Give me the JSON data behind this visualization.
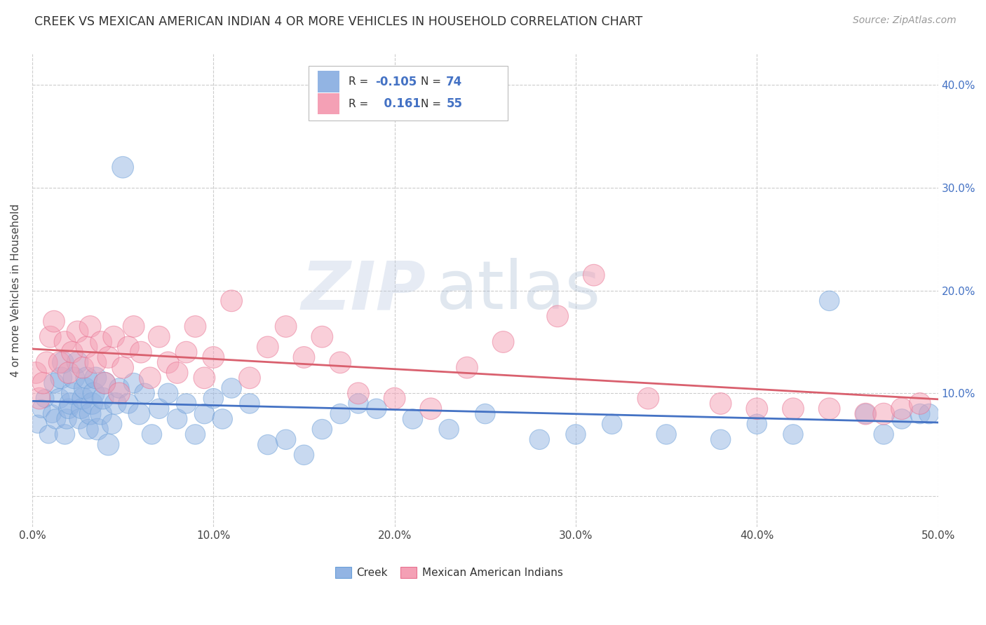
{
  "title": "CREEK VS MEXICAN AMERICAN INDIAN 4 OR MORE VEHICLES IN HOUSEHOLD CORRELATION CHART",
  "source": "Source: ZipAtlas.com",
  "ylabel": "4 or more Vehicles in Household",
  "xlim": [
    0.0,
    0.5
  ],
  "ylim": [
    -0.03,
    0.43
  ],
  "xtick_vals": [
    0.0,
    0.1,
    0.2,
    0.3,
    0.4,
    0.5
  ],
  "xtick_labels": [
    "0.0%",
    "10.0%",
    "20.0%",
    "30.0%",
    "40.0%",
    "50.0%"
  ],
  "ytick_vals": [
    0.0,
    0.1,
    0.2,
    0.3,
    0.4
  ],
  "creek_color": "#92b4e3",
  "creek_edge_color": "#6a9fd8",
  "mexican_color": "#f4a0b5",
  "mexican_edge_color": "#e87090",
  "creek_line_color": "#4472c4",
  "mexican_line_color": "#d9606e",
  "creek_R": -0.105,
  "creek_N": 74,
  "mexican_R": 0.161,
  "mexican_N": 55,
  "legend_labels": [
    "Creek",
    "Mexican American Indians"
  ],
  "background_color": "#ffffff",
  "grid_color": "#cccccc",
  "right_tick_color": "#4472c4",
  "creek_x": [
    0.003,
    0.005,
    0.007,
    0.009,
    0.011,
    0.012,
    0.013,
    0.015,
    0.016,
    0.017,
    0.018,
    0.019,
    0.02,
    0.021,
    0.022,
    0.023,
    0.025,
    0.026,
    0.027,
    0.028,
    0.029,
    0.03,
    0.031,
    0.032,
    0.033,
    0.034,
    0.035,
    0.036,
    0.038,
    0.039,
    0.04,
    0.042,
    0.044,
    0.046,
    0.048,
    0.05,
    0.053,
    0.056,
    0.059,
    0.062,
    0.066,
    0.07,
    0.075,
    0.08,
    0.085,
    0.09,
    0.095,
    0.1,
    0.105,
    0.11,
    0.12,
    0.13,
    0.14,
    0.15,
    0.16,
    0.17,
    0.18,
    0.19,
    0.21,
    0.23,
    0.25,
    0.28,
    0.3,
    0.32,
    0.35,
    0.38,
    0.4,
    0.42,
    0.44,
    0.46,
    0.47,
    0.48,
    0.49,
    0.495
  ],
  "creek_y": [
    0.07,
    0.085,
    0.095,
    0.06,
    0.08,
    0.11,
    0.075,
    0.095,
    0.115,
    0.13,
    0.06,
    0.075,
    0.085,
    0.09,
    0.1,
    0.115,
    0.13,
    0.075,
    0.085,
    0.095,
    0.105,
    0.115,
    0.065,
    0.08,
    0.09,
    0.1,
    0.115,
    0.065,
    0.08,
    0.095,
    0.11,
    0.05,
    0.07,
    0.09,
    0.105,
    0.32,
    0.09,
    0.11,
    0.08,
    0.1,
    0.06,
    0.085,
    0.1,
    0.075,
    0.09,
    0.06,
    0.08,
    0.095,
    0.075,
    0.105,
    0.09,
    0.05,
    0.055,
    0.04,
    0.065,
    0.08,
    0.09,
    0.085,
    0.075,
    0.065,
    0.08,
    0.055,
    0.06,
    0.07,
    0.06,
    0.055,
    0.07,
    0.06,
    0.19,
    0.08,
    0.06,
    0.075,
    0.08,
    0.08
  ],
  "creek_size": [
    100,
    100,
    100,
    100,
    100,
    120,
    120,
    120,
    140,
    140,
    120,
    120,
    120,
    140,
    140,
    140,
    140,
    120,
    120,
    140,
    140,
    140,
    120,
    140,
    140,
    140,
    140,
    140,
    140,
    140,
    140,
    140,
    120,
    140,
    120,
    140,
    120,
    120,
    140,
    120,
    120,
    120,
    120,
    120,
    120,
    120,
    120,
    120,
    120,
    120,
    120,
    120,
    120,
    120,
    120,
    120,
    120,
    120,
    120,
    120,
    120,
    120,
    120,
    120,
    120,
    120,
    120,
    120,
    120,
    120,
    120,
    120,
    120,
    120
  ],
  "mexican_x": [
    0.002,
    0.004,
    0.006,
    0.008,
    0.01,
    0.012,
    0.015,
    0.018,
    0.02,
    0.022,
    0.025,
    0.028,
    0.03,
    0.032,
    0.035,
    0.038,
    0.04,
    0.042,
    0.045,
    0.048,
    0.05,
    0.053,
    0.056,
    0.06,
    0.065,
    0.07,
    0.075,
    0.08,
    0.085,
    0.09,
    0.095,
    0.1,
    0.11,
    0.12,
    0.13,
    0.14,
    0.15,
    0.16,
    0.17,
    0.18,
    0.2,
    0.22,
    0.24,
    0.26,
    0.29,
    0.31,
    0.34,
    0.38,
    0.4,
    0.42,
    0.44,
    0.46,
    0.47,
    0.48,
    0.49
  ],
  "mexican_y": [
    0.12,
    0.095,
    0.11,
    0.13,
    0.155,
    0.17,
    0.13,
    0.15,
    0.12,
    0.14,
    0.16,
    0.125,
    0.145,
    0.165,
    0.13,
    0.15,
    0.11,
    0.135,
    0.155,
    0.1,
    0.125,
    0.145,
    0.165,
    0.14,
    0.115,
    0.155,
    0.13,
    0.12,
    0.14,
    0.165,
    0.115,
    0.135,
    0.19,
    0.115,
    0.145,
    0.165,
    0.135,
    0.155,
    0.13,
    0.1,
    0.095,
    0.085,
    0.125,
    0.15,
    0.175,
    0.215,
    0.095,
    0.09,
    0.085,
    0.085,
    0.085,
    0.08,
    0.08,
    0.085,
    0.09
  ],
  "mexican_size": [
    140,
    140,
    140,
    140,
    140,
    140,
    140,
    140,
    140,
    140,
    140,
    140,
    140,
    140,
    140,
    140,
    140,
    140,
    140,
    140,
    140,
    140,
    140,
    140,
    140,
    140,
    140,
    140,
    140,
    140,
    140,
    140,
    140,
    140,
    140,
    140,
    140,
    140,
    140,
    140,
    140,
    140,
    140,
    140,
    140,
    140,
    140,
    140,
    140,
    140,
    140,
    140,
    140,
    140,
    140
  ]
}
